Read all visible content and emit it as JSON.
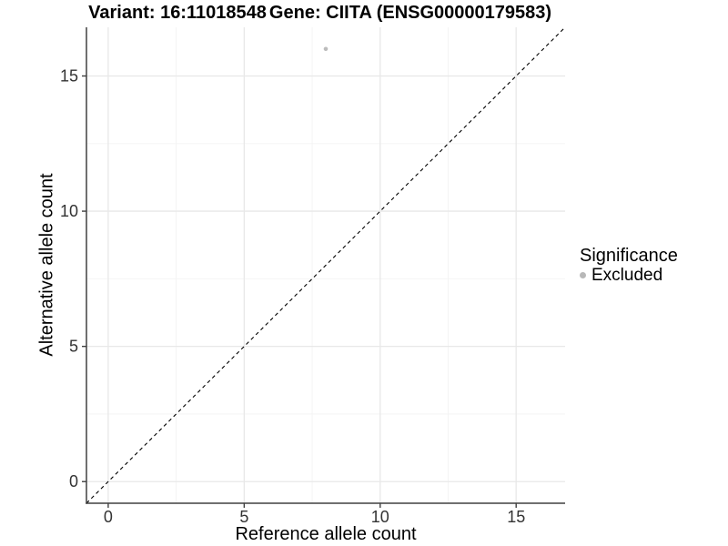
{
  "chart_data": {
    "type": "scatter",
    "title_left": "Variant: 16:11018548",
    "title_right": "Gene: CIITA (ENSG00000179583)",
    "xlabel": "Reference allele count",
    "ylabel": "Alternative allele count",
    "xlim": [
      -0.8,
      16.8
    ],
    "ylim": [
      -0.8,
      16.8
    ],
    "x_ticks": [
      0,
      5,
      10,
      15
    ],
    "y_ticks": [
      0,
      5,
      10,
      15
    ],
    "x_minor_ticks": [
      2.5,
      7.5,
      12.5
    ],
    "y_minor_ticks": [
      2.5,
      7.5,
      12.5
    ],
    "grid": true,
    "points": [
      {
        "x": 8,
        "y": 16,
        "series": "Excluded"
      }
    ],
    "identity_line": {
      "style": "dashed",
      "from": [
        -0.8,
        -0.8
      ],
      "to": [
        16.8,
        16.8
      ]
    },
    "legend": {
      "title": "Significance",
      "position": "right",
      "items": [
        {
          "label": "Excluded",
          "color": "#b8b8b8"
        }
      ]
    },
    "colors": {
      "point": "#bcbcbc",
      "axis": "#404040",
      "tick_label": "#333333",
      "grid_major": "#e8e8e8",
      "grid_minor": "#f3f3f3",
      "line": "#000000"
    }
  }
}
